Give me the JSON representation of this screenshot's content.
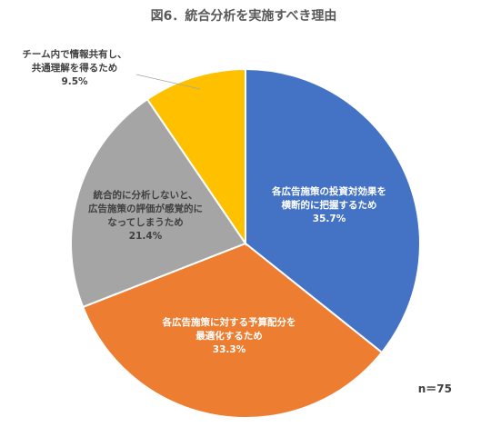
{
  "chart_data": {
    "type": "pie",
    "title": "図6．統合分析を実施すべき理由",
    "note": "n＝75",
    "slices": [
      {
        "lines": [
          "各広告施策の投資対効果を",
          "横断的に把握するため"
        ],
        "value_label": "35.7%",
        "value": 35.7,
        "color": "#4472C4"
      },
      {
        "lines": [
          "各広告施策に対する予算配分を",
          "最適化するため"
        ],
        "value_label": "33.3%",
        "value": 33.3,
        "color": "#ED7D31"
      },
      {
        "lines": [
          "統合的に分析しないと、",
          "広告施策の評価が感覚的に",
          "なってしまうため"
        ],
        "value_label": "21.4%",
        "value": 21.4,
        "color": "#A5A5A5"
      },
      {
        "lines": [
          "チーム内で情報共有し、",
          "共通理解を得るため"
        ],
        "value_label": "9.5%",
        "value": 9.5,
        "color": "#FFC000"
      }
    ]
  }
}
